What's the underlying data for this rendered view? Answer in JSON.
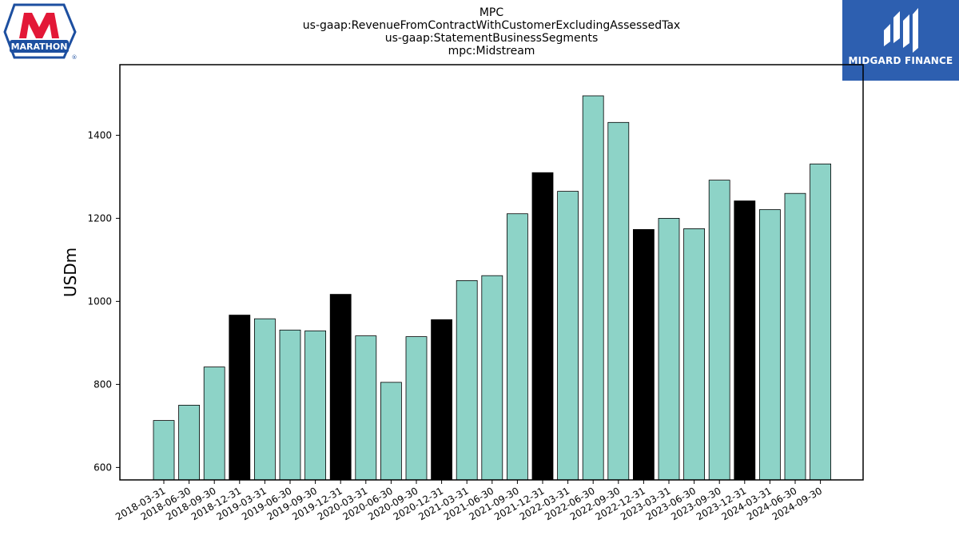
{
  "chart_data": {
    "type": "bar",
    "title_lines": [
      "MPC",
      "us-gaap:RevenueFromContractWithCustomerExcludingAssessedTax",
      "us-gaap:StatementBusinessSegments",
      "mpc:Midstream"
    ],
    "ylabel": "USDm",
    "xlabel": "",
    "ylim": [
      570,
      1570
    ],
    "yticks": [
      600,
      800,
      1000,
      1200,
      1400
    ],
    "categories": [
      "2018-03-31",
      "2018-06-30",
      "2018-09-30",
      "2018-12-31",
      "2019-03-31",
      "2019-06-30",
      "2019-09-30",
      "2019-12-31",
      "2020-03-31",
      "2020-06-30",
      "2020-09-30",
      "2020-12-31",
      "2021-03-31",
      "2021-06-30",
      "2021-09-30",
      "2021-12-31",
      "2022-03-31",
      "2022-06-30",
      "2022-09-30",
      "2022-12-31",
      "2023-03-31",
      "2023-06-30",
      "2023-09-30",
      "2023-12-31",
      "2024-03-31",
      "2024-06-30",
      "2024-09-30"
    ],
    "values": [
      713,
      750,
      842,
      967,
      958,
      931,
      929,
      1017,
      917,
      805,
      915,
      956,
      1050,
      1062,
      1211,
      1310,
      1265,
      1495,
      1431,
      1173,
      1200,
      1175,
      1292,
      1242,
      1221,
      1260,
      1331
    ],
    "colors": {
      "quarter": "#8dd3c7",
      "year_end": "#000000",
      "edge": "#000000"
    },
    "grid": false
  },
  "logos": {
    "left": {
      "text": "MARATHON",
      "registered": "®",
      "colors": {
        "red": "#e31837",
        "blue": "#1d4fa0"
      }
    },
    "right": {
      "text": "MIDGARD FINANCE",
      "background": "#2d5fb0"
    }
  }
}
